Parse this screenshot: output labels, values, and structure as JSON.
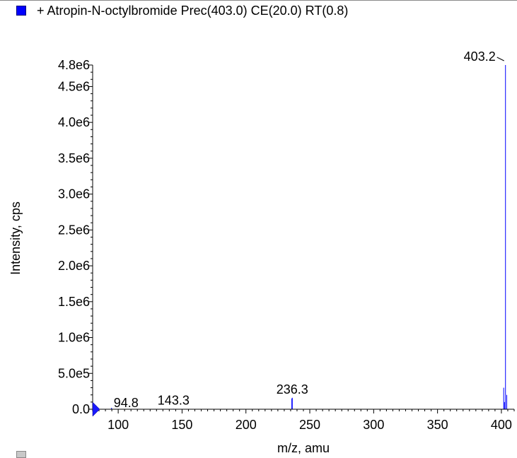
{
  "legend": {
    "label": "+ Atropin-N-octylbromide Prec(403.0) CE(20.0) RT(0.8)",
    "color": "#0000ff"
  },
  "chart_data": {
    "type": "bar",
    "title": "+ Atropin-N-octylbromide Prec(403.0) CE(20.0) RT(0.8)",
    "xlabel": "m/z, amu",
    "ylabel": "Intensity, cps",
    "xlim": [
      80,
      410
    ],
    "ylim": [
      0,
      4800000
    ],
    "grid": false,
    "series_color": "#0000ff",
    "x_ticks": [
      "100",
      "150",
      "200",
      "250",
      "300",
      "350",
      "400"
    ],
    "y_ticks": [
      "0.0",
      "5.0e5",
      "1.0e6",
      "1.5e6",
      "2.0e6",
      "2.5e6",
      "3.0e6",
      "3.5e6",
      "4.0e6",
      "4.5e6",
      "4.8e6"
    ],
    "y_tick_values": [
      0,
      500000,
      1000000,
      1500000,
      2000000,
      2500000,
      3000000,
      3500000,
      4000000,
      4500000,
      4800000
    ],
    "peaks": [
      {
        "mz": 94.8,
        "intensity": 20000
      },
      {
        "mz": 143.3,
        "intensity": 6000
      },
      {
        "mz": 235.9,
        "intensity": 150000
      },
      {
        "mz": 236.3,
        "intensity": 160000
      },
      {
        "mz": 401.8,
        "intensity": 300000
      },
      {
        "mz": 402.4,
        "intensity": 100000
      },
      {
        "mz": 403.2,
        "intensity": 4800000
      },
      {
        "mz": 404.2,
        "intensity": 200000
      }
    ],
    "peak_labels": [
      {
        "text": "94.8",
        "mz": 94.8
      },
      {
        "text": "143.3",
        "mz": 143.3
      },
      {
        "text": "236.3",
        "mz": 236.3
      },
      {
        "text": "403.2",
        "mz": 403.2
      }
    ]
  }
}
